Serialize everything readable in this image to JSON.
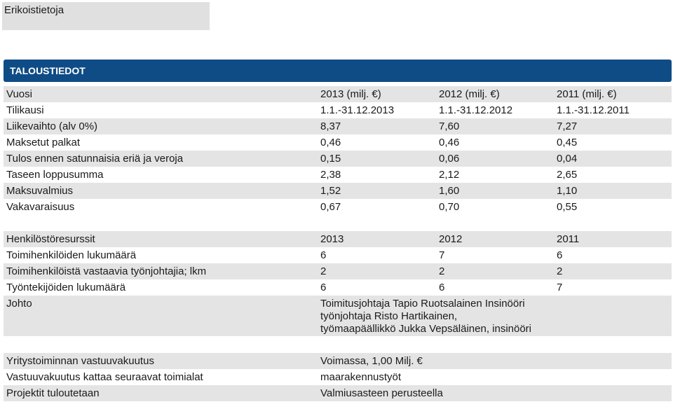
{
  "tab": {
    "label": "Erikoistietoja"
  },
  "section": {
    "title": "TALOUSTIEDOT"
  },
  "finance": {
    "rows": [
      [
        "Vuosi",
        "2013 (milj. €)",
        "2012 (milj. €)",
        "2011 (milj. €)"
      ],
      [
        "Tilikausi",
        "1.1.-31.12.2013",
        "1.1.-31.12.2012",
        "1.1.-31.12.2011"
      ],
      [
        "Liikevaihto (alv 0%)",
        "8,37",
        "7,60",
        "7,27"
      ],
      [
        "Maksetut palkat",
        "0,46",
        "0,46",
        "0,45"
      ],
      [
        "Tulos ennen satunnaisia eriä ja veroja",
        "0,15",
        "0,06",
        "0,04"
      ],
      [
        "Taseen loppusumma",
        "2,38",
        "2,12",
        "2,65"
      ],
      [
        "Maksuvalmius",
        "1,52",
        "1,60",
        "1,10"
      ],
      [
        "Vakavaraisuus",
        "0,67",
        "0,70",
        "0,55"
      ]
    ]
  },
  "personnel": {
    "rows": [
      [
        "Henkilöstöresurssit",
        "2013",
        "2012",
        "2011"
      ],
      [
        "Toimihenkilöiden lukumäärä",
        "6",
        "7",
        "6"
      ],
      [
        "Toimihenkilöistä vastaavia työnjohtajia; lkm",
        "2",
        "2",
        "2"
      ],
      [
        "Työntekijöiden lukumäärä",
        "6",
        "6",
        "7"
      ]
    ],
    "management": {
      "label": "Johto",
      "lines": [
        "Toimitusjohtaja Tapio Ruotsalainen Insinööri",
        "työnjohtaja Risto Hartikainen,",
        "työmaapäällikkö Jukka Vepsäläinen, insinööri"
      ]
    }
  },
  "insurance": {
    "rows": [
      [
        "Yritystoiminnan vastuuvakuutus",
        "Voimassa, 1,00 Milj. €"
      ],
      [
        "Vastuuvakuutus kattaa seuraavat toimialat",
        "maarakennustyöt"
      ],
      [
        "Projektit tuloutetaan",
        "Valmiusasteen perusteella"
      ]
    ]
  }
}
